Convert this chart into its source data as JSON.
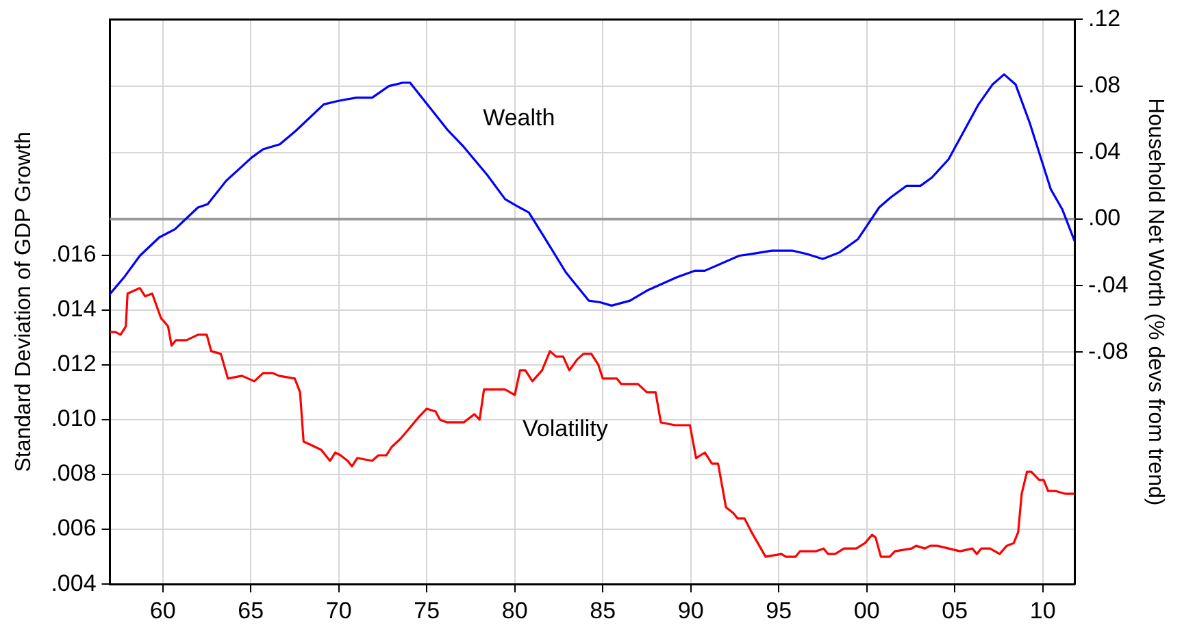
{
  "chart_data": {
    "type": "line",
    "ylabel": "Standard Deviation of GDP Growth",
    "y2label": "Household Net Worth (% devs from trend)",
    "xlim": [
      1957,
      2011.8
    ],
    "xticks": [
      {
        "value": 1960,
        "label": "60"
      },
      {
        "value": 1965,
        "label": "65"
      },
      {
        "value": 1970,
        "label": "70"
      },
      {
        "value": 1975,
        "label": "75"
      },
      {
        "value": 1980,
        "label": "80"
      },
      {
        "value": 1985,
        "label": "85"
      },
      {
        "value": 1990,
        "label": "90"
      },
      {
        "value": 1995,
        "label": "95"
      },
      {
        "value": 2000,
        "label": "00"
      },
      {
        "value": 2005,
        "label": "05"
      },
      {
        "value": 2010,
        "label": "10"
      }
    ],
    "ylim": [
      0.004,
      0.0246
    ],
    "yticks": [
      {
        "value": 0.004,
        "label": ".004"
      },
      {
        "value": 0.006,
        "label": ".006"
      },
      {
        "value": 0.008,
        "label": ".008"
      },
      {
        "value": 0.01,
        "label": ".010"
      },
      {
        "value": 0.012,
        "label": ".012"
      },
      {
        "value": 0.014,
        "label": ".014"
      },
      {
        "value": 0.016,
        "label": ".016"
      }
    ],
    "y2lim": [
      -0.2194,
      0.12
    ],
    "y2ticks": [
      {
        "value": -0.08,
        "label": "-.08"
      },
      {
        "value": -0.04,
        "label": "-.04"
      },
      {
        "value": 0,
        "label": ".00"
      },
      {
        "value": 0.04,
        "label": ".04"
      },
      {
        "value": 0.08,
        "label": ".08"
      },
      {
        "value": 0.12,
        "label": ".12"
      }
    ],
    "grid": true,
    "ref_lines": [
      {
        "axis": "y2",
        "value": 0,
        "color": "#999999"
      }
    ],
    "series": [
      {
        "name": "Wealth",
        "color": "#0000ff",
        "axis": "y2",
        "x": [
          1957.0,
          1957.8,
          1958.7,
          1959.8,
          1960.7,
          1962.0,
          1962.55,
          1963.6,
          1965.05,
          1965.7,
          1966.65,
          1967.55,
          1969.15,
          1969.95,
          1971.0,
          1971.9,
          1972.85,
          1973.65,
          1974.05,
          1975.1,
          1976.15,
          1977.05,
          1978.4,
          1979.45,
          1980.1,
          1980.8,
          1981.8,
          1982.9,
          1984.2,
          1984.85,
          1985.5,
          1986.55,
          1987.5,
          1989.2,
          1990.25,
          1990.8,
          1992.75,
          1993.4,
          1994.6,
          1995.8,
          1996.6,
          1997.5,
          1998.45,
          1999.5,
          2000.7,
          2001.35,
          2002.25,
          2003.05,
          2003.7,
          2004.65,
          2006.35,
          2007.15,
          2007.8,
          2008.45,
          2009.25,
          2010.45,
          2011.1,
          2011.8
        ],
        "values": [
          -0.045,
          -0.035,
          -0.022,
          -0.011,
          -0.006,
          0.007,
          0.009,
          0.023,
          0.037,
          0.042,
          0.045,
          0.053,
          0.069,
          0.071,
          0.073,
          0.073,
          0.08,
          0.082,
          0.082,
          0.068,
          0.054,
          0.044,
          0.027,
          0.012,
          0.008,
          0.004,
          -0.013,
          -0.032,
          -0.049,
          -0.05,
          -0.052,
          -0.049,
          -0.043,
          -0.035,
          -0.031,
          -0.031,
          -0.022,
          -0.021,
          -0.019,
          -0.019,
          -0.021,
          -0.024,
          -0.02,
          -0.012,
          0.007,
          0.013,
          0.02,
          0.02,
          0.025,
          0.036,
          0.069,
          0.081,
          0.087,
          0.081,
          0.058,
          0.018,
          0.006,
          -0.013
        ]
      },
      {
        "name": "Volatility",
        "color": "#ff0000",
        "x": [
          1957.0,
          1957.3,
          1957.6,
          1957.9,
          1958.0,
          1958.7,
          1959.0,
          1959.4,
          1959.9,
          1960.05,
          1960.3,
          1960.5,
          1960.75,
          1961.35,
          1962.0,
          1962.5,
          1962.75,
          1963.3,
          1963.7,
          1964.5,
          1965.2,
          1965.7,
          1966.25,
          1966.6,
          1967.5,
          1967.8,
          1968.0,
          1968.35,
          1969.0,
          1969.5,
          1969.8,
          1970.1,
          1970.5,
          1970.75,
          1971.05,
          1971.9,
          1972.25,
          1972.7,
          1973.0,
          1973.5,
          1973.9,
          1974.55,
          1975.0,
          1975.5,
          1975.75,
          1976.15,
          1977.1,
          1977.7,
          1978.0,
          1978.25,
          1979.45,
          1980.0,
          1980.3,
          1980.6,
          1981.0,
          1981.55,
          1982.0,
          1982.35,
          1982.75,
          1983.1,
          1983.55,
          1983.9,
          1984.35,
          1984.75,
          1985.0,
          1985.8,
          1986.05,
          1987.0,
          1987.5,
          1988.0,
          1988.3,
          1989.1,
          1989.95,
          1990.3,
          1990.8,
          1991.2,
          1991.55,
          1992.0,
          1992.4,
          1992.65,
          1993.05,
          1993.45,
          1994.25,
          1995.15,
          1995.4,
          1995.95,
          1996.2,
          1997.1,
          1997.55,
          1997.8,
          1998.2,
          1998.7,
          1999.4,
          1999.9,
          2000.3,
          2000.5,
          2000.8,
          2001.3,
          2001.6,
          2002.55,
          2002.8,
          2003.3,
          2003.6,
          2004.0,
          2004.65,
          2005.3,
          2006.0,
          2006.25,
          2006.5,
          2007.0,
          2007.55,
          2007.95,
          2008.35,
          2008.6,
          2008.8,
          2009.1,
          2009.35,
          2009.8,
          2010.05,
          2010.3,
          2010.7,
          2011.25,
          2011.8
        ],
        "values": [
          0.0132,
          0.0132,
          0.0131,
          0.0134,
          0.0146,
          0.0148,
          0.0145,
          0.0146,
          0.0137,
          0.0136,
          0.0134,
          0.0127,
          0.0129,
          0.0129,
          0.0131,
          0.0131,
          0.0125,
          0.0124,
          0.0115,
          0.0116,
          0.0114,
          0.0117,
          0.0117,
          0.0116,
          0.0115,
          0.011,
          0.0092,
          0.0091,
          0.0089,
          0.0085,
          0.0088,
          0.0087,
          0.0085,
          0.0083,
          0.0086,
          0.0085,
          0.0087,
          0.0087,
          0.009,
          0.0093,
          0.0096,
          0.0101,
          0.0104,
          0.0103,
          0.01,
          0.0099,
          0.0099,
          0.0102,
          0.01,
          0.0111,
          0.0111,
          0.0109,
          0.0118,
          0.0118,
          0.0114,
          0.0118,
          0.0125,
          0.0123,
          0.0123,
          0.0118,
          0.0122,
          0.0124,
          0.0124,
          0.012,
          0.0115,
          0.0115,
          0.0113,
          0.0113,
          0.011,
          0.011,
          0.0099,
          0.0098,
          0.0098,
          0.0086,
          0.0088,
          0.0084,
          0.0084,
          0.0068,
          0.0066,
          0.0064,
          0.0064,
          0.0059,
          0.005,
          0.0051,
          0.005,
          0.005,
          0.0052,
          0.0052,
          0.0053,
          0.0051,
          0.0051,
          0.0053,
          0.0053,
          0.0055,
          0.0058,
          0.0057,
          0.005,
          0.005,
          0.0052,
          0.0053,
          0.0054,
          0.0053,
          0.0054,
          0.0054,
          0.0053,
          0.0052,
          0.0053,
          0.0051,
          0.0053,
          0.0053,
          0.0051,
          0.0054,
          0.0055,
          0.0059,
          0.0073,
          0.0081,
          0.0081,
          0.0078,
          0.0078,
          0.0074,
          0.0074,
          0.0073,
          0.0073
        ]
      }
    ]
  }
}
